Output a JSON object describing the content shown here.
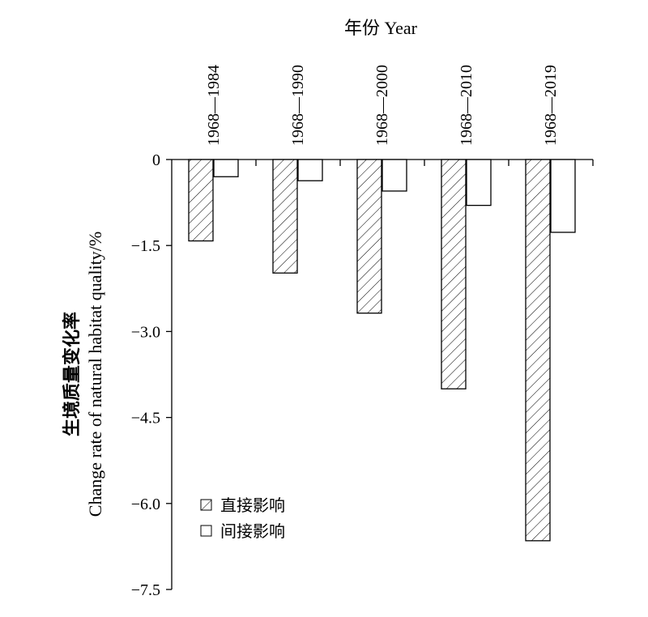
{
  "chart_data": {
    "type": "bar",
    "title": "",
    "xlabel": "年份 Year",
    "ylabel_cn": "生境质量变化率",
    "ylabel_en": "Change rate of natural habitat quality/%",
    "categories": [
      "1968—1984",
      "1968—1990",
      "1968—2000",
      "1968—2010",
      "1968—2019"
    ],
    "series": [
      {
        "name": "直接影响",
        "pattern": "hatch",
        "values": [
          -1.42,
          -1.98,
          -2.68,
          -4.0,
          -6.65
        ]
      },
      {
        "name": "间接影响",
        "pattern": "none",
        "values": [
          -0.3,
          -0.37,
          -0.55,
          -0.8,
          -1.27
        ]
      }
    ],
    "ylim": [
      -7.5,
      0
    ],
    "yticks": [
      0,
      -1.5,
      -3.0,
      -4.5,
      -6.0,
      -7.5
    ],
    "ytick_labels": [
      "0",
      "-1.5",
      "-3.0",
      "-4.5",
      "-6.0",
      "-7.5"
    ],
    "x_axis_position": "top",
    "legend_position": "bottom-left",
    "grid": false,
    "colors": {
      "stroke": "#000000",
      "fill": "#ffffff"
    }
  }
}
